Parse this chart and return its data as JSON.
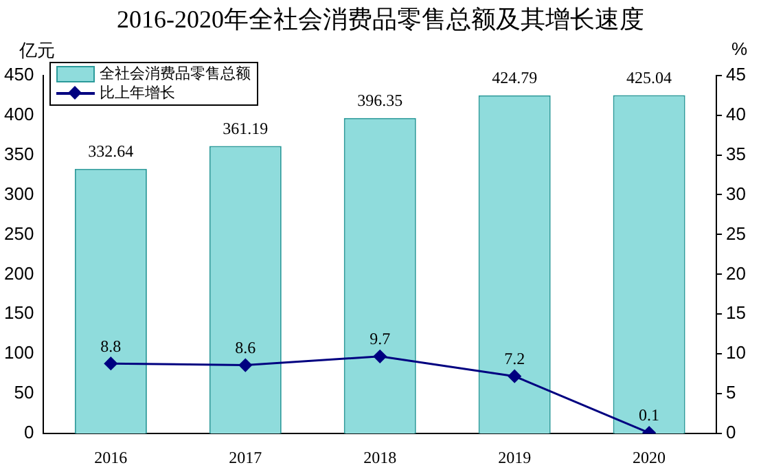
{
  "chart_data": {
    "type": "bar",
    "title": "2016-2020年全社会消费品零售总额及其增长速度",
    "ylabel": "亿元",
    "y2label": "%",
    "categories": [
      "2016",
      "2017",
      "2018",
      "2019",
      "2020"
    ],
    "series": [
      {
        "name": "全社会消费品零售总额",
        "color": "#8fdcdc",
        "values": [
          332.64,
          361.19,
          396.35,
          424.79,
          425.04
        ]
      },
      {
        "name": "比上年增长",
        "type": "line",
        "axis": "y2",
        "color": "#000080",
        "values": [
          8.8,
          8.6,
          9.7,
          7.2,
          0.1
        ]
      }
    ],
    "ylim": [
      0,
      450
    ],
    "yticks": [
      0,
      50,
      100,
      150,
      200,
      250,
      300,
      350,
      400,
      450
    ],
    "y2lim": [
      0,
      45
    ],
    "y2ticks": [
      0,
      5,
      10,
      15,
      20,
      25,
      30,
      35,
      40,
      45
    ],
    "data_labels": true,
    "legend": "top left",
    "marker": "diamond",
    "line_style": "solid",
    "grid": false
  }
}
